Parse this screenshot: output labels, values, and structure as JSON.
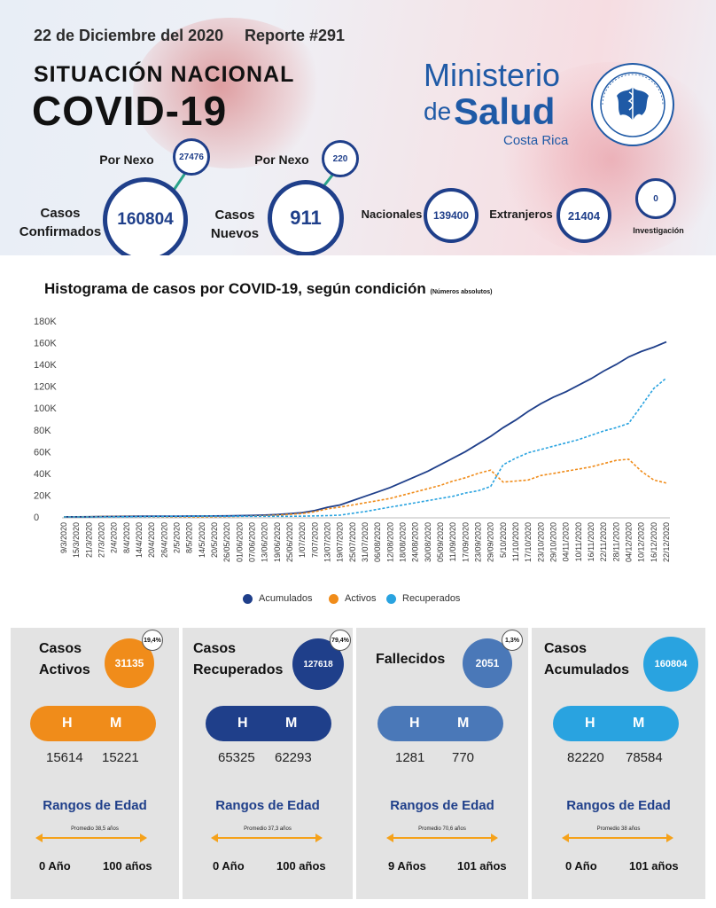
{
  "header": {
    "date": "22 de Diciembre del 2020",
    "report": "Reporte #291",
    "situacion": "SITUACIÓN NACIONAL",
    "covid": "COVID-19",
    "logo_ministerio": "Ministerio",
    "logo_de": "de",
    "logo_salud": "Salud",
    "logo_costa_rica": "Costa Rica"
  },
  "stats": {
    "por_nexo_label": "Por Nexo",
    "confirmados_nexo": "27476",
    "confirmados_label": "Casos Confirmados",
    "confirmados_value": "160804",
    "nuevos_nexo": "220",
    "nuevos_label": "Casos Nuevos",
    "nuevos_value": "911",
    "nacionales_label": "Nacionales",
    "nacionales_value": "139400",
    "extranjeros_label": "Extranjeros",
    "extranjeros_value": "21404",
    "investigacion_label": "Investigación",
    "investigacion_value": "0"
  },
  "chart_title": "Histograma de casos por COVID-19, según condición",
  "chart_unit": "(Números absolutos)",
  "chart_data": {
    "type": "line",
    "title": "Histograma de casos por COVID-19, según condición",
    "subtitle": "(Números absolutos)",
    "xlabel": "",
    "ylabel": "",
    "ylim": [
      0,
      180000
    ],
    "yticks": [
      0,
      20000,
      40000,
      60000,
      80000,
      100000,
      120000,
      140000,
      160000,
      180000
    ],
    "ytick_labels": [
      "0",
      "20K",
      "40K",
      "60K",
      "80K",
      "100K",
      "120K",
      "140K",
      "160K",
      "180K"
    ],
    "x": [
      "9/3/2020",
      "15/3/2020",
      "21/3/2020",
      "27/3/2020",
      "2/4/2020",
      "8/4/2020",
      "14/4/2020",
      "20/4/2020",
      "26/4/2020",
      "2/5/2020",
      "8/5/2020",
      "14/5/2020",
      "20/5/2020",
      "26/05/2020",
      "01/06/2020",
      "07/06/2020",
      "13/06/2020",
      "19/06/2020",
      "25/06/2020",
      "1/07/2020",
      "7/07/2020",
      "13/07/2020",
      "19/07/2020",
      "25/07/2020",
      "31/07/2020",
      "06/08/2020",
      "12/08/2020",
      "18/08/2020",
      "24/08/2020",
      "30/08/2020",
      "05/09/2020",
      "11/09/2020",
      "17/09/2020",
      "23/09/2020",
      "29/09/2020",
      "5/10/2020",
      "11/10/2020",
      "17/10/2020",
      "23/10/2020",
      "29/10/2020",
      "04/11/2020",
      "10/11/2020",
      "16/11/2020",
      "22/11/2020",
      "28/11/2020",
      "04/12/2020",
      "10/12/2020",
      "16/12/2020",
      "22/12/2020"
    ],
    "legend_position": "bottom",
    "series": [
      {
        "name": "Acumulados",
        "color": "#1f3f8a",
        "style": "solid",
        "values": [
          50,
          100,
          200,
          400,
          500,
          600,
          650,
          700,
          710,
          760,
          800,
          850,
          900,
          1000,
          1200,
          1400,
          1700,
          2200,
          3000,
          4000,
          5900,
          8900,
          11000,
          15000,
          19000,
          23000,
          27000,
          32000,
          37000,
          42000,
          48000,
          54000,
          60000,
          67000,
          74000,
          82000,
          89000,
          97000,
          104000,
          110000,
          115000,
          121000,
          127000,
          134000,
          140000,
          147000,
          152000,
          156000,
          160804
        ]
      },
      {
        "name": "Activos",
        "color": "#f08c1a",
        "style": "dashed",
        "values": [
          50,
          100,
          180,
          350,
          400,
          350,
          300,
          250,
          200,
          150,
          120,
          100,
          150,
          300,
          500,
          800,
          1100,
          1600,
          2400,
          3200,
          4800,
          7400,
          9000,
          11000,
          13000,
          15000,
          17000,
          20000,
          23000,
          26000,
          29000,
          33000,
          36000,
          40000,
          43000,
          32000,
          33000,
          34000,
          38000,
          40000,
          42000,
          44000,
          46000,
          49000,
          52000,
          53000,
          42000,
          34000,
          31135
        ]
      },
      {
        "name": "Recuperados",
        "color": "#29a3e0",
        "style": "dashed",
        "values": [
          0,
          0,
          10,
          40,
          80,
          200,
          330,
          400,
          500,
          600,
          660,
          720,
          700,
          650,
          650,
          600,
          550,
          550,
          600,
          750,
          950,
          1200,
          1600,
          3300,
          5000,
          7000,
          9000,
          11000,
          13000,
          15000,
          17000,
          19000,
          22000,
          24000,
          28000,
          48000,
          54000,
          59000,
          62000,
          65000,
          68000,
          71000,
          75000,
          79000,
          82000,
          86000,
          102000,
          118000,
          127618
        ]
      }
    ]
  },
  "panels": [
    {
      "title1": "Casos",
      "title2": "Activos",
      "value": "31135",
      "pct": "19,4%",
      "h": "15614",
      "m": "15221",
      "prom": "Promedio 38,5 años",
      "min": "0 Año",
      "max": "100 años"
    },
    {
      "title1": "Casos",
      "title2": "Recuperados",
      "value": "127618",
      "pct": "79,4%",
      "h": "65325",
      "m": "62293",
      "prom": "Promedio 37,3 años",
      "min": "0 Año",
      "max": "100 años"
    },
    {
      "title1": "Fallecidos",
      "title2": "",
      "value": "2051",
      "pct": "1,3%",
      "h": "1281",
      "m": "770",
      "prom": "Promedio 70,6 años",
      "min": "9 Años",
      "max": "101 años"
    },
    {
      "title1": "Casos",
      "title2": "Acumulados",
      "value": "160804",
      "pct": "",
      "h": "82220",
      "m": "78584",
      "prom": "Promedio 38 años",
      "min": "0 Año",
      "max": "101 años"
    }
  ],
  "pill_h": "H",
  "pill_m": "M",
  "rangos_label": "Rangos de Edad",
  "colors": {
    "activos": "#f08c1a",
    "recuperados": "#1f3f8a",
    "fallecidos": "#4a78b8",
    "acumulados": "#29a3e0",
    "accent": "#1f3f8a"
  }
}
